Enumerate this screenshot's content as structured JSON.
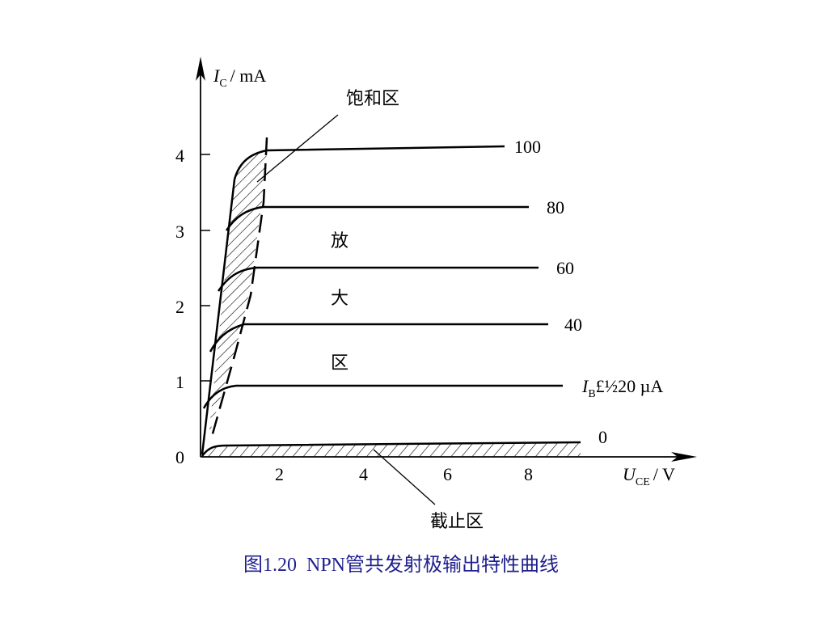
{
  "axes": {
    "y_symbol": "I",
    "y_subscript": "C",
    "y_unit": "/ mA",
    "x_symbol": "U",
    "x_subscript": "CE",
    "x_unit": "/ V",
    "y_ticks": [
      "0",
      "1",
      "2",
      "3",
      "4"
    ],
    "x_ticks": [
      "2",
      "4",
      "6",
      "8"
    ]
  },
  "curves": {
    "labels": [
      "100",
      "80",
      "60",
      "40"
    ],
    "ib_label_symbol": "I",
    "ib_label_subscript": "B",
    "ib_label_rest": "£½20 µA",
    "zero_label": "0"
  },
  "regions": {
    "saturation": "饱和区",
    "amplification": [
      "放",
      "大",
      "区"
    ],
    "cutoff": "截止区"
  },
  "caption": "图1.20  NPN管共发射极输出特性曲线",
  "colors": {
    "line": "#000000",
    "caption": "#1f1f8f"
  }
}
